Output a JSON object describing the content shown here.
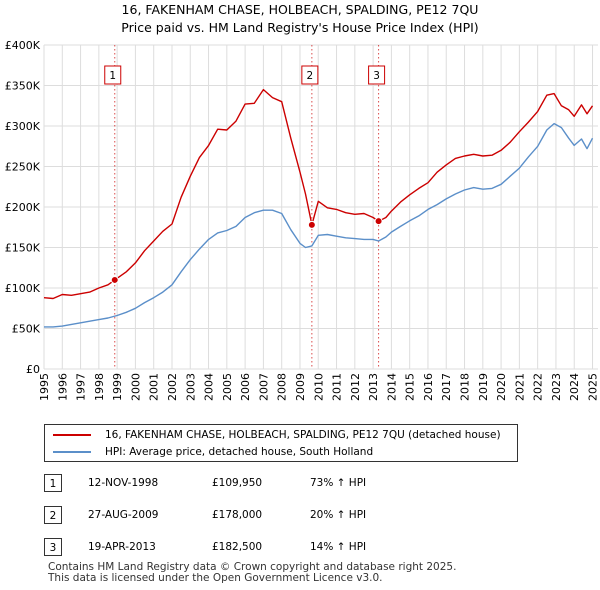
{
  "title_line1": "16, FAKENHAM CHASE, HOLBEACH, SPALDING, PE12 7QU",
  "title_line2": "Price paid vs. HM Land Registry's House Price Index (HPI)",
  "colors": {
    "property": "#cc0000",
    "hpi": "#5b8fc9",
    "marker_line": "#cc0000"
  },
  "chart_data": {
    "type": "line",
    "ylim": [
      0,
      400000
    ],
    "xlim": [
      1995.0,
      2025.3
    ],
    "y_ticks": [
      0,
      50000,
      100000,
      150000,
      200000,
      250000,
      300000,
      350000,
      400000
    ],
    "y_tick_labels": [
      "£0",
      "£50K",
      "£100K",
      "£150K",
      "£200K",
      "£250K",
      "£300K",
      "£350K",
      "£400K"
    ],
    "x_ticks": [
      1995,
      1996,
      1997,
      1998,
      1999,
      2000,
      2001,
      2002,
      2003,
      2004,
      2005,
      2006,
      2007,
      2008,
      2009,
      2010,
      2011,
      2012,
      2013,
      2014,
      2015,
      2016,
      2017,
      2018,
      2019,
      2020,
      2021,
      2022,
      2023,
      2024,
      2025
    ],
    "x_tick_labels": [
      "1995",
      "1996",
      "1997",
      "1998",
      "1999",
      "2000",
      "2001",
      "2002",
      "2003",
      "2004",
      "2005",
      "2006",
      "2007",
      "2008",
      "2009",
      "2010",
      "2011",
      "2012",
      "2013",
      "2014",
      "2015",
      "2016",
      "2017",
      "2018",
      "2019",
      "2020",
      "2021",
      "2022",
      "2023",
      "2024",
      "2025"
    ],
    "series": [
      {
        "name": "16, FAKENHAM CHASE, HOLBEACH, SPALDING, PE12 7QU (detached house)",
        "color": "#cc0000",
        "x": [
          1995.0,
          1995.5,
          1996.0,
          1996.5,
          1997.0,
          1997.5,
          1998.0,
          1998.5,
          1998.87,
          1999.5,
          2000.0,
          2000.5,
          2001.0,
          2001.5,
          2002.0,
          2002.5,
          2003.0,
          2003.5,
          2004.0,
          2004.5,
          2005.0,
          2005.5,
          2006.0,
          2006.5,
          2007.0,
          2007.5,
          2008.0,
          2008.5,
          2009.0,
          2009.3,
          2009.65,
          2010.0,
          2010.5,
          2011.0,
          2011.5,
          2012.0,
          2012.5,
          2013.0,
          2013.3,
          2013.7,
          2014.0,
          2014.5,
          2015.0,
          2015.5,
          2016.0,
          2016.5,
          2017.0,
          2017.5,
          2018.0,
          2018.5,
          2019.0,
          2019.5,
          2020.0,
          2020.5,
          2021.0,
          2021.5,
          2022.0,
          2022.5,
          2022.9,
          2023.3,
          2023.7,
          2024.0,
          2024.4,
          2024.7,
          2025.0
        ],
        "values": [
          88000,
          87000,
          92000,
          91000,
          93000,
          95000,
          100000,
          104000,
          109950,
          120000,
          131000,
          146000,
          158000,
          170000,
          179000,
          212000,
          238000,
          261000,
          276000,
          296000,
          295000,
          306000,
          327000,
          328000,
          345000,
          335000,
          330000,
          285000,
          243000,
          216000,
          178000,
          207000,
          199000,
          197000,
          193000,
          191000,
          192000,
          187000,
          182500,
          187000,
          195000,
          206000,
          215000,
          223000,
          230000,
          243000,
          252000,
          260000,
          263000,
          265000,
          263000,
          264000,
          270000,
          280000,
          293000,
          305000,
          318000,
          338000,
          340000,
          325000,
          320000,
          312000,
          326000,
          315000,
          325000
        ]
      },
      {
        "name": "HPI: Average price, detached house, South Holland",
        "color": "#5b8fc9",
        "x": [
          1995.0,
          1995.5,
          1996.0,
          1996.5,
          1997.0,
          1997.5,
          1998.0,
          1998.5,
          1999.0,
          1999.5,
          2000.0,
          2000.5,
          2001.0,
          2001.5,
          2002.0,
          2002.5,
          2003.0,
          2003.5,
          2004.0,
          2004.5,
          2005.0,
          2005.5,
          2006.0,
          2006.5,
          2007.0,
          2007.5,
          2008.0,
          2008.5,
          2009.0,
          2009.3,
          2009.65,
          2010.0,
          2010.5,
          2011.0,
          2011.5,
          2012.0,
          2012.5,
          2013.0,
          2013.3,
          2013.7,
          2014.0,
          2014.5,
          2015.0,
          2015.5,
          2016.0,
          2016.5,
          2017.0,
          2017.5,
          2018.0,
          2018.5,
          2019.0,
          2019.5,
          2020.0,
          2020.5,
          2021.0,
          2021.5,
          2022.0,
          2022.5,
          2022.9,
          2023.3,
          2023.7,
          2024.0,
          2024.4,
          2024.7,
          2025.0
        ],
        "values": [
          52000,
          52000,
          53000,
          55000,
          57000,
          59000,
          61000,
          63000,
          66000,
          70000,
          75000,
          82000,
          88000,
          95000,
          104000,
          120000,
          135000,
          148000,
          160000,
          168000,
          171000,
          176000,
          187000,
          193000,
          196000,
          196000,
          192000,
          172000,
          155000,
          150000,
          152000,
          165000,
          166000,
          164000,
          162000,
          161000,
          160000,
          160000,
          158000,
          163000,
          169000,
          176000,
          183000,
          189000,
          197000,
          203000,
          210000,
          216000,
          221000,
          224000,
          222000,
          223000,
          228000,
          238000,
          248000,
          262000,
          275000,
          295000,
          303000,
          298000,
          285000,
          276000,
          284000,
          272000,
          285000
        ]
      }
    ],
    "sales": [
      {
        "label": "1",
        "x": 1998.87,
        "value": 109950
      },
      {
        "label": "2",
        "x": 2009.65,
        "value": 178000
      },
      {
        "label": "3",
        "x": 2013.3,
        "value": 182500
      }
    ]
  },
  "legend": {
    "property": "16, FAKENHAM CHASE, HOLBEACH, SPALDING, PE12 7QU (detached house)",
    "hpi": "HPI: Average price, detached house, South Holland"
  },
  "transactions": [
    {
      "num": "1",
      "date": "12-NOV-1998",
      "price": "£109,950",
      "hpi": "73% ↑ HPI"
    },
    {
      "num": "2",
      "date": "27-AUG-2009",
      "price": "£178,000",
      "hpi": "20% ↑ HPI"
    },
    {
      "num": "3",
      "date": "19-APR-2013",
      "price": "£182,500",
      "hpi": "14% ↑ HPI"
    }
  ],
  "footer": {
    "line1": "Contains HM Land Registry data © Crown copyright and database right 2025.",
    "line2": "This data is licensed under the Open Government Licence v3.0."
  }
}
